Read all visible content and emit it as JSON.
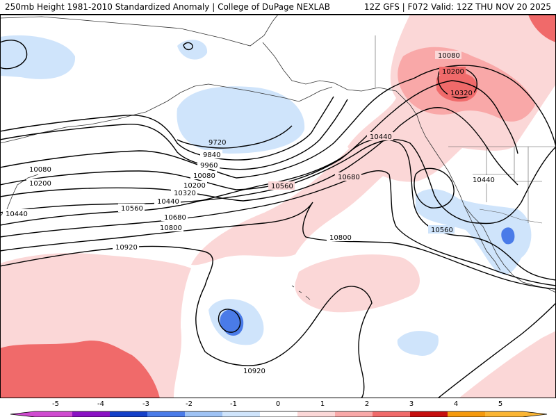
{
  "header": {
    "title_left": "250mb Height 1981-2010 Standardized Anomaly | College of DuPage NEXLAB",
    "title_right": "12Z GFS | F072 Valid: 12Z THU NOV 20 2025"
  },
  "contour_labels": [
    "9720",
    "9840",
    "9960",
    "10080",
    "10200",
    "10320",
    "10440",
    "10560",
    "10680",
    "10800",
    "10920",
    "10080",
    "10200",
    "10440",
    "10560",
    "10680",
    "10800",
    "10920",
    "10440",
    "10080",
    "10200",
    "10320",
    "10440",
    "10560"
  ],
  "legend": {
    "ticks": [
      "-5",
      "-4",
      "-3",
      "-2",
      "-1",
      "0",
      "1",
      "2",
      "3",
      "4",
      "5"
    ],
    "colors": [
      "#d04ad0",
      "#8b12c4",
      "#1540c8",
      "#4a7be8",
      "#9ec2f4",
      "#cfe4fb",
      "#ffffff",
      "#fbd7d7",
      "#f9a8a8",
      "#f06a6a",
      "#c60f0f",
      "#f59a0e",
      "#fab534"
    ]
  },
  "map_colors": {
    "light_blue": "#cfe4fb",
    "mid_blue": "#9ec2f4",
    "blue": "#4a7be8",
    "light_pink": "#fbd7d7",
    "pink": "#f9a8a8",
    "red": "#f06a6a"
  }
}
